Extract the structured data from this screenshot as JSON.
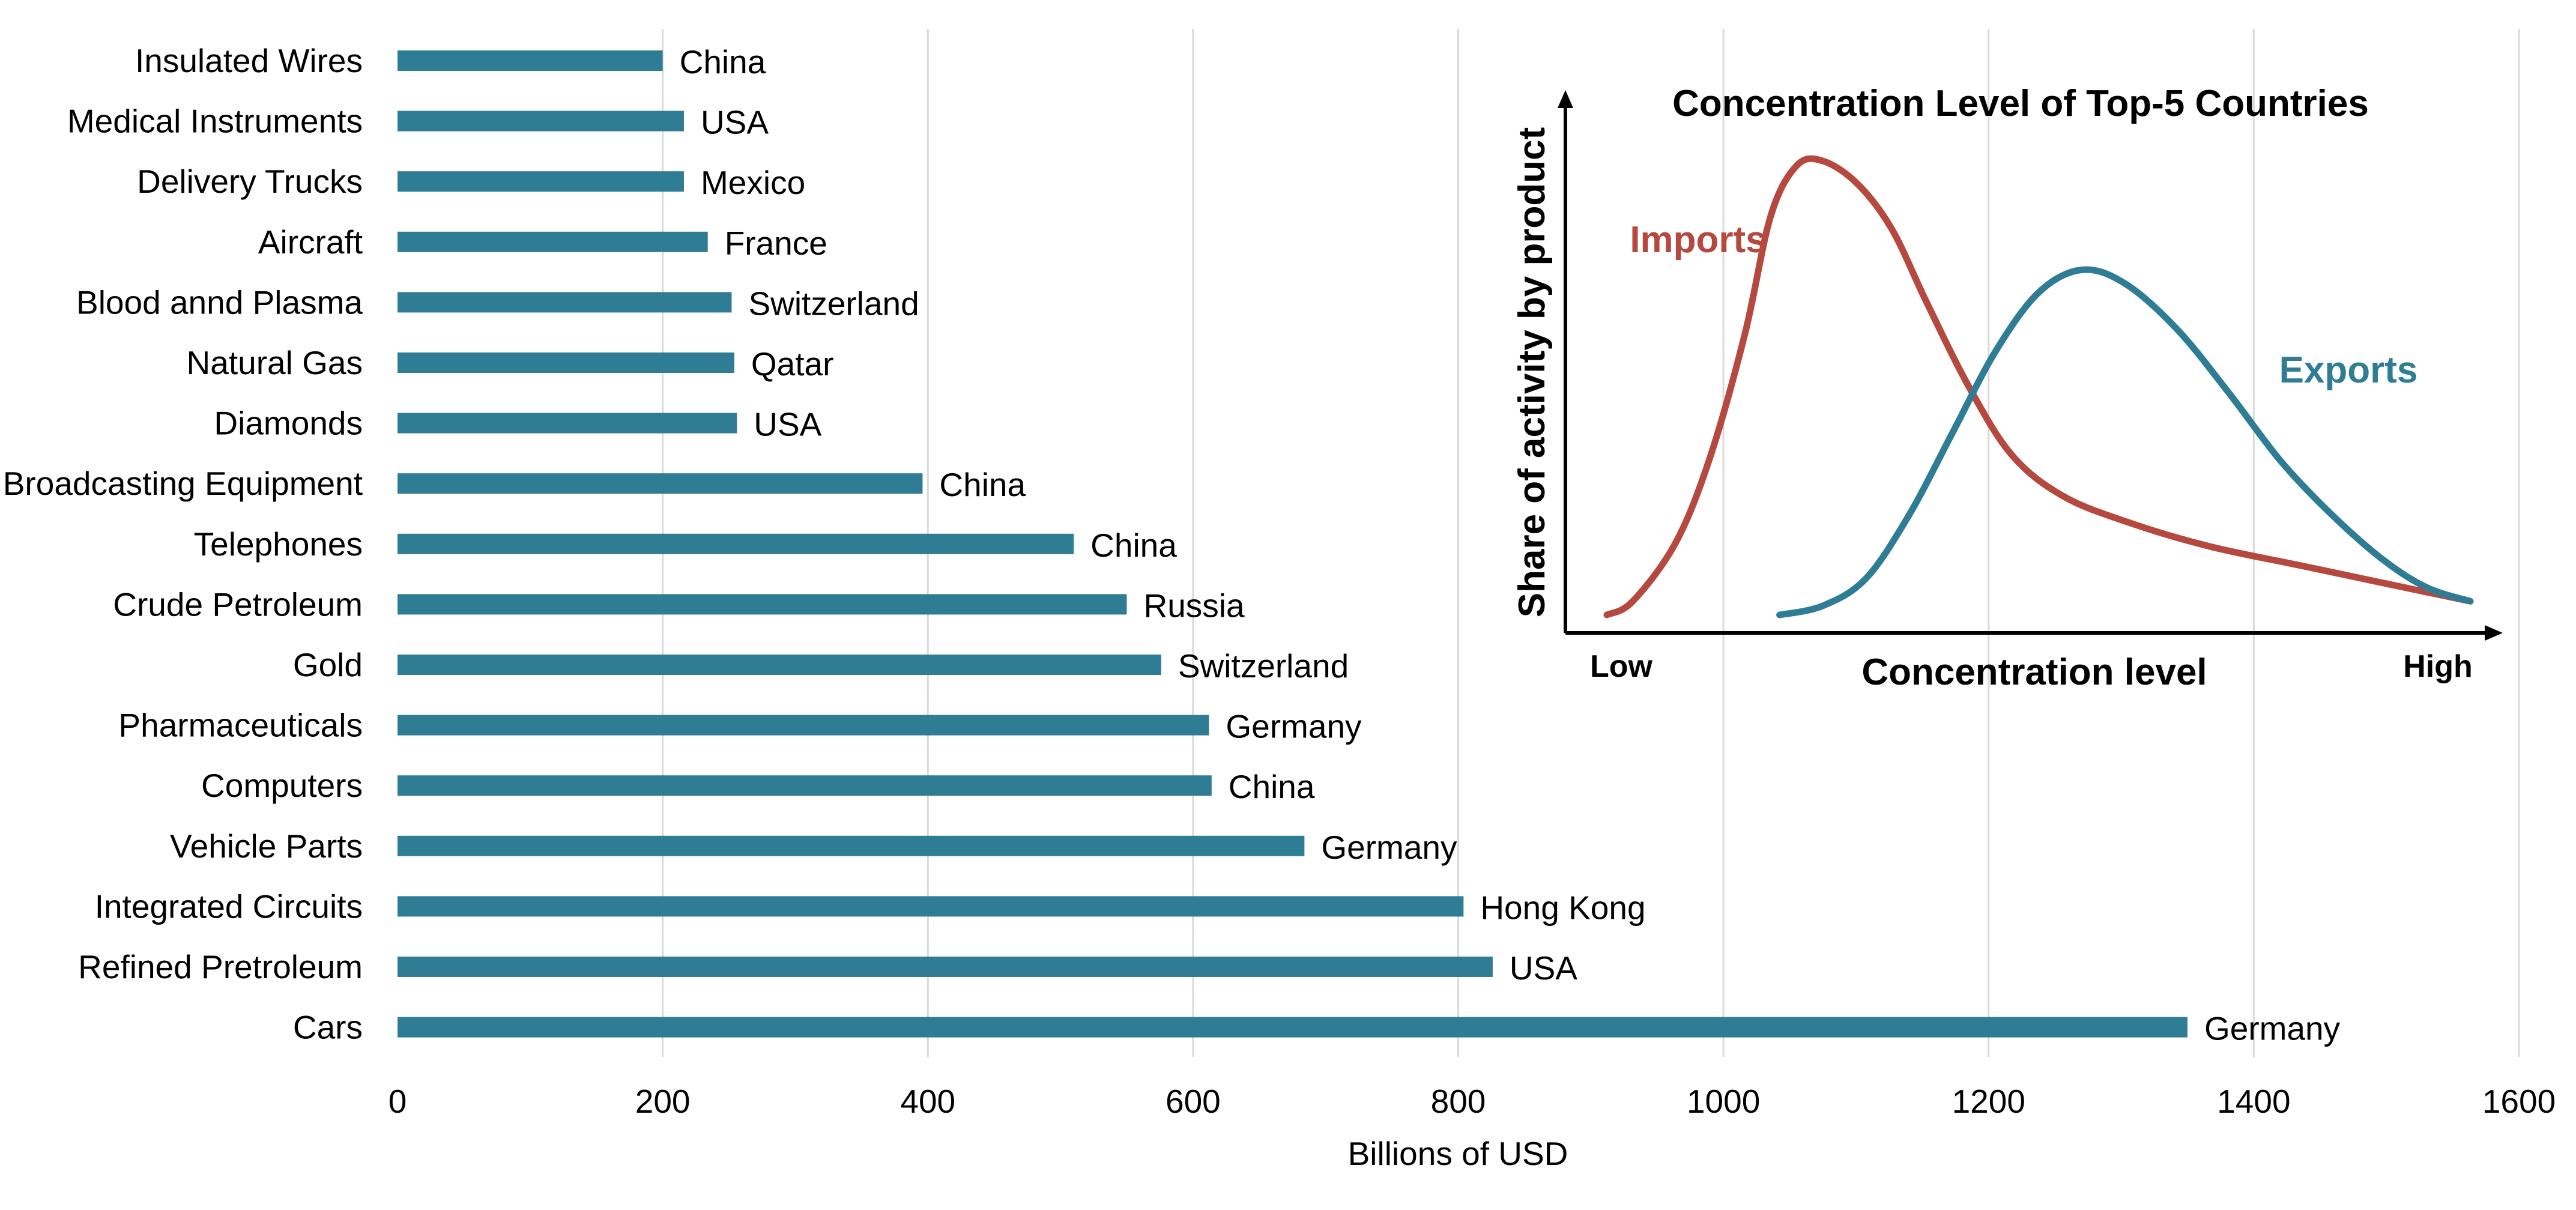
{
  "chart_data": [
    {
      "type": "bar",
      "orientation": "horizontal",
      "categories": [
        "Insulated Wires",
        "Medical Instruments",
        "Delivery Trucks",
        "Aircraft",
        "Blood annd Plasma",
        "Natural Gas",
        "Diamonds",
        "Broadcasting Equipment",
        "Telephones",
        "Crude Petroleum",
        "Gold",
        "Pharmaceuticals",
        "Computers",
        "Vehicle Parts",
        "Integrated Circuits",
        "Refined Pretroleum",
        "Cars"
      ],
      "values": [
        200,
        216,
        216,
        234,
        252,
        254,
        256,
        396,
        510,
        550,
        576,
        612,
        614,
        684,
        804,
        826,
        1350
      ],
      "data_labels": [
        "China",
        "USA",
        "Mexico",
        "France",
        "Switzerland",
        "Qatar",
        "USA",
        "China",
        "China",
        "Russia",
        "Switzerland",
        "Germany",
        "China",
        "Germany",
        "Hong Kong",
        "USA",
        "Germany"
      ],
      "xlabel": "Billions of USD",
      "xlim": [
        0,
        1600
      ],
      "xticks": [
        "0",
        "200",
        "400",
        "600",
        "800",
        "1000",
        "1200",
        "1400",
        "1600"
      ],
      "grid": "vertical",
      "bar_color": "#2e7d95"
    },
    {
      "type": "line",
      "title": "Concentration Level of Top-5 Countries",
      "xlabel": "Concentration level",
      "ylabel": "Share of activity by product",
      "x_end_labels": [
        "Low",
        "High"
      ],
      "xlim": [
        0,
        1
      ],
      "ylim": [
        0,
        1
      ],
      "series": [
        {
          "name": "Imports",
          "color": "#b5483f",
          "points": [
            [
              0.0,
              0.0
            ],
            [
              0.03,
              0.03
            ],
            [
              0.08,
              0.16
            ],
            [
              0.12,
              0.35
            ],
            [
              0.16,
              0.62
            ],
            [
              0.19,
              0.88
            ],
            [
              0.22,
              0.99
            ],
            [
              0.25,
              1.0
            ],
            [
              0.29,
              0.95
            ],
            [
              0.33,
              0.85
            ],
            [
              0.37,
              0.69
            ],
            [
              0.42,
              0.5
            ],
            [
              0.47,
              0.35
            ],
            [
              0.53,
              0.26
            ],
            [
              0.61,
              0.2
            ],
            [
              0.7,
              0.15
            ],
            [
              0.8,
              0.11
            ],
            [
              0.9,
              0.07
            ],
            [
              1.0,
              0.03
            ]
          ]
        },
        {
          "name": "Exports",
          "color": "#2e7d95",
          "points": [
            [
              0.2,
              0.0
            ],
            [
              0.25,
              0.02
            ],
            [
              0.3,
              0.08
            ],
            [
              0.35,
              0.22
            ],
            [
              0.4,
              0.4
            ],
            [
              0.45,
              0.58
            ],
            [
              0.5,
              0.71
            ],
            [
              0.55,
              0.76
            ],
            [
              0.6,
              0.73
            ],
            [
              0.66,
              0.63
            ],
            [
              0.72,
              0.49
            ],
            [
              0.78,
              0.34
            ],
            [
              0.84,
              0.22
            ],
            [
              0.9,
              0.12
            ],
            [
              0.95,
              0.06
            ],
            [
              1.0,
              0.03
            ]
          ]
        }
      ]
    }
  ]
}
